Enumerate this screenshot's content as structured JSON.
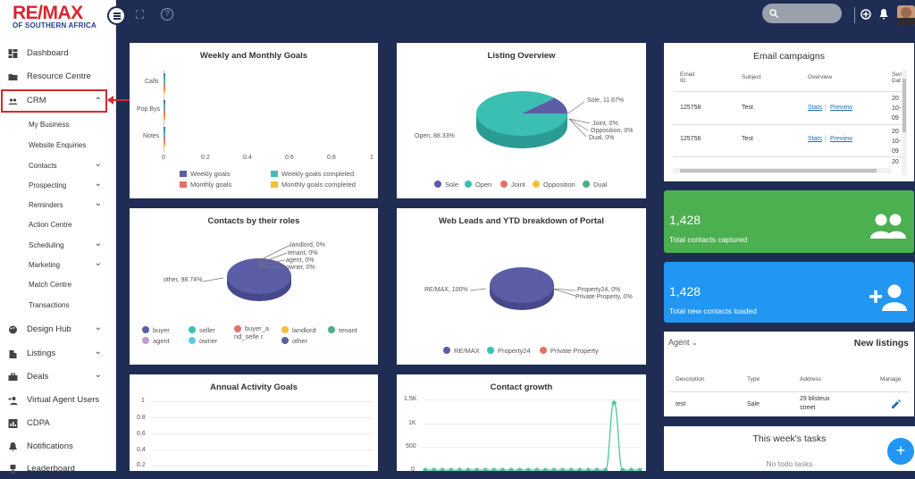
{
  "brand": {
    "name": "RE/MAX",
    "tagline": "OF SOUTHERN AFRICA"
  },
  "sidebar": {
    "items": [
      {
        "label": "Dashboard",
        "icon": "dashboard-icon"
      },
      {
        "label": "Resource Centre",
        "icon": "folder-icon"
      },
      {
        "label": "CRM",
        "icon": "users-icon",
        "chevron": "⌃"
      },
      {
        "label": "Design Hub",
        "icon": "palette-icon",
        "chevron": "⌄"
      },
      {
        "label": "Listings",
        "icon": "building-icon",
        "chevron": "⌄"
      },
      {
        "label": "Deals",
        "icon": "briefcase-icon",
        "chevron": "⌄"
      },
      {
        "label": "Virtual Agent Users",
        "icon": "user-plus-icon"
      },
      {
        "label": "CDPA",
        "icon": "chart-icon"
      },
      {
        "label": "Notifications",
        "icon": "bell-icon"
      },
      {
        "label": "Leaderboard",
        "icon": "trophy-icon"
      }
    ],
    "crm_sub": [
      {
        "label": "My Business"
      },
      {
        "label": "Website Enquiries"
      },
      {
        "label": "Contacts",
        "chevron": "⌄"
      },
      {
        "label": "Prospecting",
        "chevron": "⌄"
      },
      {
        "label": "Reminders",
        "chevron": "⌄"
      },
      {
        "label": "Action Centre"
      },
      {
        "label": "Scheduling",
        "chevron": "⌄"
      },
      {
        "label": "Marketing",
        "chevron": "⌄"
      },
      {
        "label": "Match Centre"
      },
      {
        "label": "Transactions"
      }
    ]
  },
  "topbar": {
    "fullscreen_icon": "⛶",
    "help_icon": "?",
    "search_icon": "⌕",
    "add_icon": "⊕"
  },
  "weekly_goals": {
    "title": "Weekly and Monthly Goals",
    "chart_data": {
      "type": "bar",
      "orientation": "horizontal",
      "categories": [
        "Calls",
        "Pop Bys",
        "Notes"
      ],
      "series": [
        {
          "name": "Weekly goals",
          "values": [
            0,
            0,
            0
          ],
          "color": "#5b5ea6"
        },
        {
          "name": "Weekly goals completed",
          "values": [
            0,
            0,
            0
          ],
          "color": "#3bbfb3"
        },
        {
          "name": "Monthly goals",
          "values": [
            0,
            0,
            0
          ],
          "color": "#e8706b"
        },
        {
          "name": "Monthly goals completed",
          "values": [
            0,
            0,
            0
          ],
          "color": "#f5bf3a"
        }
      ],
      "ticks": [
        "0",
        "0.2",
        "0.4",
        "0.6",
        "0.8",
        "1"
      ],
      "xlim": [
        0,
        1
      ]
    }
  },
  "listing_overview": {
    "title": "Listing Overview",
    "chart_data": {
      "type": "pie",
      "slices": [
        {
          "name": "Sole",
          "value": 11.67,
          "label": "Sole, 11.67%",
          "color": "#5b5ea6"
        },
        {
          "name": "Open",
          "value": 88.33,
          "label": "Open, 88.33%",
          "color": "#3bbfb3"
        },
        {
          "name": "Joint",
          "value": 0,
          "label": "Joint, 0%",
          "color": "#e8706b"
        },
        {
          "name": "Opposition",
          "value": 0,
          "label": "Opposition, 0%",
          "color": "#f5bf3a"
        },
        {
          "name": "Dual",
          "value": 0,
          "label": "Dual, 0%",
          "color": "#4caf7d"
        }
      ]
    }
  },
  "email_campaigns": {
    "title": "Email campaigns",
    "headers": [
      "Email ID",
      "Subject",
      "Overview",
      "Sen Dat"
    ],
    "rows": [
      {
        "id": "125758",
        "subject": "Test",
        "stats": "Stats",
        "sep": "|",
        "preview": "Preview",
        "date": "20 10- 09"
      },
      {
        "id": "125756",
        "subject": "Test",
        "stats": "Stats",
        "sep": "|",
        "preview": "Preview",
        "date": "20 10- 09"
      }
    ],
    "trailing_date": "20"
  },
  "contacts_roles": {
    "title": "Contacts by their roles",
    "chart_data": {
      "type": "pie",
      "slices": [
        {
          "name": "buyer",
          "value": 0,
          "color": "#5b5ea6"
        },
        {
          "name": "seller",
          "value": 0,
          "color": "#3bbfb3"
        },
        {
          "name": "buyer_and_seller",
          "value": 0,
          "color": "#e8706b"
        },
        {
          "name": "landlord",
          "value": 0,
          "label": "landlord, 0%",
          "color": "#f5bf3a"
        },
        {
          "name": "tenant",
          "value": 0,
          "label": "tenant, 0%",
          "color": "#4caf7d"
        },
        {
          "name": "agent",
          "value": 0,
          "label": "agent, 0%",
          "color": "#c39bd3"
        },
        {
          "name": "owner",
          "value": 0,
          "label": "owner, 0%",
          "color": "#5bc8e6"
        },
        {
          "name": "other",
          "value": 98.74,
          "label": "other, 98.74%",
          "color": "#5b5ea6"
        }
      ],
      "legend": [
        "buyer",
        "seller",
        "buyer_a nd_selle r",
        "landlord",
        "tenant",
        "agent",
        "owner",
        "other"
      ]
    }
  },
  "web_leads": {
    "title": "Web Leads and YTD breakdown of Portal",
    "chart_data": {
      "type": "pie",
      "slices": [
        {
          "name": "RE/MAX",
          "value": 100,
          "label": "RE/MAX, 100%",
          "color": "#5b5ea6"
        },
        {
          "name": "Property24",
          "value": 0,
          "label": "Property24, 0%",
          "color": "#3bbfb3"
        },
        {
          "name": "Private Property",
          "value": 0,
          "label": "Private Property, 0%",
          "color": "#e8706b"
        }
      ]
    }
  },
  "stats": {
    "total_captured": {
      "value": "1,428",
      "label": "Total contacts captured"
    },
    "total_loaded": {
      "value": "1,428",
      "label": "Total new contacts loaded"
    }
  },
  "new_listings": {
    "title": "New listings",
    "filter": "Agent",
    "headers": [
      "Description",
      "Type",
      "Address",
      "Manage"
    ],
    "rows": [
      {
        "description": "test",
        "type": "Sale",
        "address": "29 blisteux street"
      }
    ]
  },
  "tasks": {
    "title": "This week's tasks",
    "empty": "No todo tasks"
  },
  "annual_goals": {
    "title": "Annual Activity Goals",
    "chart_data": {
      "type": "line",
      "ticks": [
        "1",
        "0.8",
        "0.6",
        "0.4",
        "0.2"
      ],
      "ylim": [
        0,
        1
      ],
      "series": []
    }
  },
  "contact_growth": {
    "title": "Contact growth",
    "chart_data": {
      "type": "line",
      "ticks": [
        "1.5K",
        "1K",
        "500",
        "0"
      ],
      "ylim": [
        0,
        1500
      ],
      "series": [
        {
          "name": "Contacts",
          "values": [
            0,
            0,
            0,
            0,
            0,
            0,
            0,
            0,
            0,
            0,
            0,
            0,
            0,
            0,
            0,
            0,
            0,
            0,
            0,
            0,
            0,
            0,
            1428,
            0,
            0,
            0
          ],
          "color": "#4cc9a0"
        }
      ]
    }
  }
}
